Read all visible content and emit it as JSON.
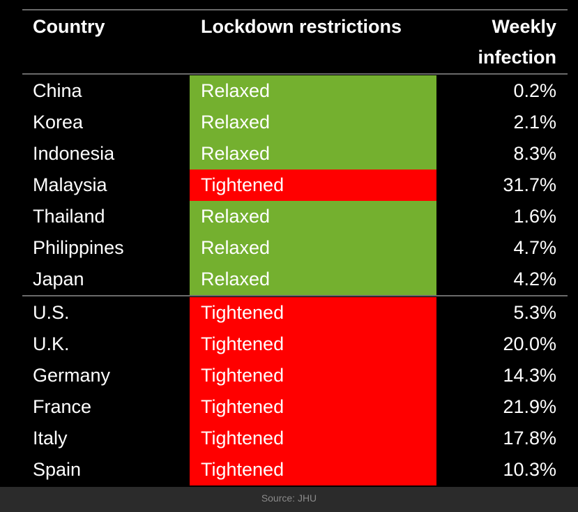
{
  "table": {
    "header": [
      "Country",
      "Lockdown restrictions",
      "Weekly infection"
    ],
    "groups": [
      [
        [
          "China",
          "Relaxed",
          "0.2%"
        ],
        [
          "Korea",
          "Relaxed",
          "2.1%"
        ],
        [
          "Indonesia",
          "Relaxed",
          "8.3%"
        ],
        [
          "Malaysia",
          "Tightened",
          "31.7%"
        ],
        [
          "Thailand",
          "Relaxed",
          "1.6%"
        ],
        [
          "Philippines",
          "Relaxed",
          "4.7%"
        ],
        [
          "Japan",
          "Relaxed",
          "4.2%"
        ]
      ],
      [
        [
          "U.S.",
          "Tightened",
          "5.3%"
        ],
        [
          "U.K.",
          "Tightened",
          "20.0%"
        ],
        [
          "Germany",
          "Tightened",
          "14.3%"
        ],
        [
          "France",
          "Tightened",
          "21.9%"
        ],
        [
          "Italy",
          "Tightened",
          "17.8%"
        ],
        [
          "Spain",
          "Tightened",
          "10.3%"
        ]
      ]
    ],
    "restriction_colors": {
      "Relaxed": "#74b02f",
      "Tightened": "#ff0000"
    }
  },
  "footer": {
    "source": "Source: JHU"
  }
}
